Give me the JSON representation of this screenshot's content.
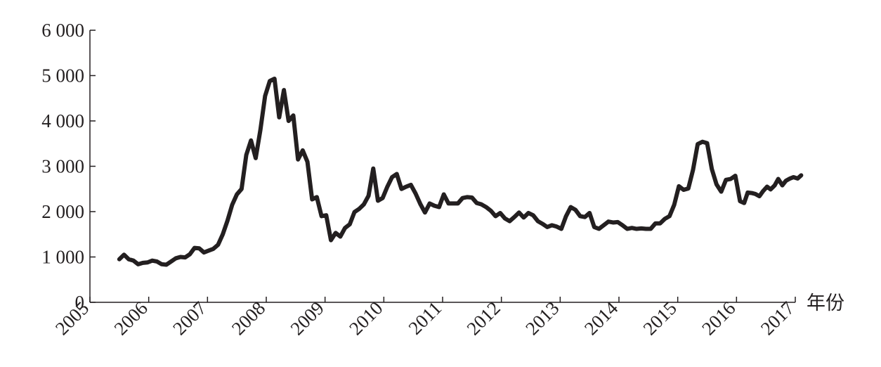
{
  "chart_data": {
    "type": "line",
    "x_label": "年份",
    "xlim": [
      2005,
      2017
    ],
    "xticks": [
      2005,
      2006,
      2007,
      2008,
      2009,
      2010,
      2011,
      2012,
      2013,
      2014,
      2015,
      2016,
      2017
    ],
    "ylim": [
      0,
      6000
    ],
    "yticks": [
      0,
      {
        "value": 1000,
        "label": "1 000"
      },
      {
        "value": 2000,
        "label": "2 000"
      },
      {
        "value": 3000,
        "label": "3 000"
      },
      {
        "value": 4000,
        "label": "4 000"
      },
      {
        "value": 5000,
        "label": "5 000"
      },
      {
        "value": 6000,
        "label": "6 000"
      }
    ],
    "grid": false,
    "color": "#231f20",
    "x": [
      2005.5,
      2005.58,
      2005.66,
      2005.74,
      2005.82,
      2005.9,
      2005.98,
      2006.06,
      2006.14,
      2006.22,
      2006.3,
      2006.38,
      2006.46,
      2006.54,
      2006.62,
      2006.7,
      2006.78,
      2006.86,
      2006.94,
      2007.02,
      2007.1,
      2007.18,
      2007.26,
      2007.34,
      2007.42,
      2007.5,
      2007.58,
      2007.66,
      2007.74,
      2007.82,
      2007.9,
      2007.98,
      2008.06,
      2008.14,
      2008.22,
      2008.3,
      2008.38,
      2008.46,
      2008.54,
      2008.62,
      2008.7,
      2008.78,
      2008.86,
      2008.94,
      2009.02,
      2009.1,
      2009.18,
      2009.26,
      2009.34,
      2009.42,
      2009.5,
      2009.58,
      2009.66,
      2009.74,
      2009.82,
      2009.9,
      2009.98,
      2010.06,
      2010.14,
      2010.22,
      2010.3,
      2010.38,
      2010.46,
      2010.54,
      2010.62,
      2010.7,
      2010.78,
      2010.86,
      2010.94,
      2011.02,
      2011.1,
      2011.18,
      2011.26,
      2011.34,
      2011.42,
      2011.5,
      2011.58,
      2011.66,
      2011.74,
      2011.82,
      2011.9,
      2011.98,
      2012.06,
      2012.14,
      2012.22,
      2012.3,
      2012.38,
      2012.46,
      2012.54,
      2012.62,
      2012.7,
      2012.78,
      2012.86,
      2012.94,
      2013.02,
      2013.1,
      2013.18,
      2013.26,
      2013.34,
      2013.42,
      2013.5,
      2013.58,
      2013.66,
      2013.74,
      2013.82,
      2013.9,
      2013.98,
      2014.06,
      2014.14,
      2014.22,
      2014.3,
      2014.38,
      2014.46,
      2014.54,
      2014.62,
      2014.7,
      2014.78,
      2014.86,
      2014.94,
      2015.02,
      2015.1,
      2015.18,
      2015.26,
      2015.34,
      2015.42,
      2015.5,
      2015.58,
      2015.66,
      2015.74,
      2015.82,
      2015.9,
      2015.98,
      2016.06,
      2016.13,
      2016.19,
      2016.26,
      2016.32,
      2016.39,
      2016.45,
      2016.52,
      2016.58,
      2016.65,
      2016.71,
      2016.78,
      2016.84,
      2016.91,
      2016.97,
      2017.04,
      2017.1
    ],
    "values": [
      950,
      1050,
      950,
      920,
      840,
      870,
      880,
      920,
      900,
      840,
      830,
      900,
      970,
      1000,
      990,
      1060,
      1200,
      1190,
      1100,
      1140,
      1180,
      1270,
      1500,
      1800,
      2150,
      2380,
      2500,
      3250,
      3570,
      3180,
      3800,
      4550,
      4880,
      4930,
      4080,
      4680,
      4000,
      4120,
      3150,
      3350,
      3100,
      2270,
      2320,
      1900,
      1920,
      1370,
      1530,
      1450,
      1640,
      1720,
      1990,
      2060,
      2160,
      2350,
      2950,
      2240,
      2300,
      2550,
      2760,
      2830,
      2500,
      2550,
      2590,
      2400,
      2170,
      1980,
      2180,
      2130,
      2100,
      2380,
      2180,
      2180,
      2180,
      2300,
      2320,
      2310,
      2190,
      2160,
      2100,
      2020,
      1900,
      1970,
      1850,
      1790,
      1880,
      1980,
      1870,
      1970,
      1920,
      1790,
      1730,
      1660,
      1700,
      1670,
      1620,
      1900,
      2100,
      2040,
      1900,
      1880,
      1970,
      1660,
      1620,
      1700,
      1780,
      1760,
      1770,
      1700,
      1620,
      1640,
      1620,
      1630,
      1620,
      1620,
      1740,
      1740,
      1840,
      1900,
      2150,
      2560,
      2480,
      2510,
      2920,
      3490,
      3540,
      3510,
      2940,
      2600,
      2440,
      2700,
      2720,
      2790,
      2230,
      2190,
      2420,
      2410,
      2390,
      2340,
      2450,
      2550,
      2490,
      2580,
      2720,
      2580,
      2680,
      2730,
      2760,
      2730,
      2800
    ]
  }
}
